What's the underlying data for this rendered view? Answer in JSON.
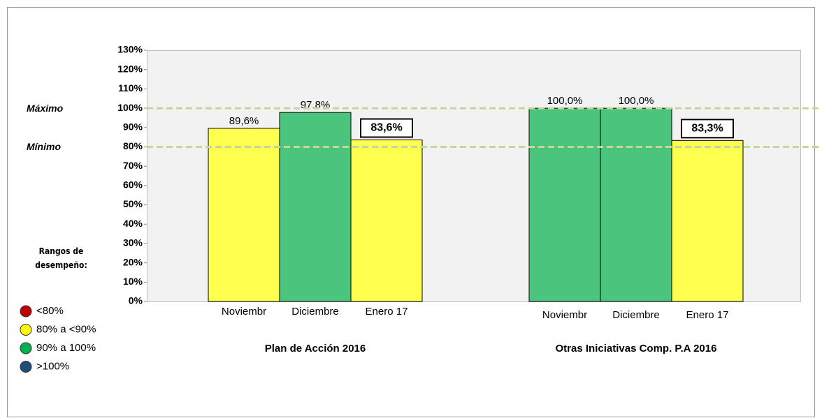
{
  "chart_data": {
    "type": "bar",
    "groups": [
      {
        "name": "Plan de Acción 2016",
        "categories": [
          "Noviembr",
          "Diciembre",
          "Enero 17"
        ],
        "values": [
          89.6,
          97.8,
          83.6
        ],
        "value_labels": [
          "89,6%",
          "97.8%",
          "83,6%"
        ],
        "colors": [
          "#ffff4f",
          "#4bc47d",
          "#ffff4f"
        ]
      },
      {
        "name": "Otras Iniciativas Comp. P.A 2016",
        "categories": [
          "Noviembr",
          "Diciembre",
          "Enero 17"
        ],
        "values": [
          100,
          100,
          83.3
        ],
        "value_labels": [
          "100,0%",
          "100,0%",
          "83,3%"
        ],
        "colors": [
          "#4bc47d",
          "#4bc47d",
          "#ffff4f"
        ]
      }
    ],
    "ylim": [
      0,
      130
    ],
    "yticks": [
      {
        "value": 0,
        "label": "0%"
      },
      {
        "value": 10,
        "label": "10%"
      },
      {
        "value": 20,
        "label": "20%"
      },
      {
        "value": 30,
        "label": "30%"
      },
      {
        "value": 40,
        "label": "40%"
      },
      {
        "value": 50,
        "label": "50%"
      },
      {
        "value": 60,
        "label": "60%"
      },
      {
        "value": 70,
        "label": "70%"
      },
      {
        "value": 80,
        "label": "80%"
      },
      {
        "value": 90,
        "label": "90%"
      },
      {
        "value": 100,
        "label": "100%"
      },
      {
        "value": 110,
        "label": "110%"
      },
      {
        "value": 120,
        "label": "120%"
      },
      {
        "value": 130,
        "label": "130%"
      }
    ],
    "reference_lines": [
      {
        "label": "Máximo",
        "value": 100,
        "color": "#c4d79b"
      },
      {
        "label": "Mínimo",
        "value": 80,
        "color": "#c4d79b"
      }
    ],
    "legend": {
      "title": "Rangos de desempeño:",
      "items": [
        {
          "label": "<80%",
          "color": "#c00000"
        },
        {
          "label": "80% a <90%",
          "color": "#ffff00"
        },
        {
          "label": "90% a 100%",
          "color": "#00b050"
        },
        {
          "label": ">100%",
          "color": "#1f4e79"
        }
      ]
    }
  }
}
